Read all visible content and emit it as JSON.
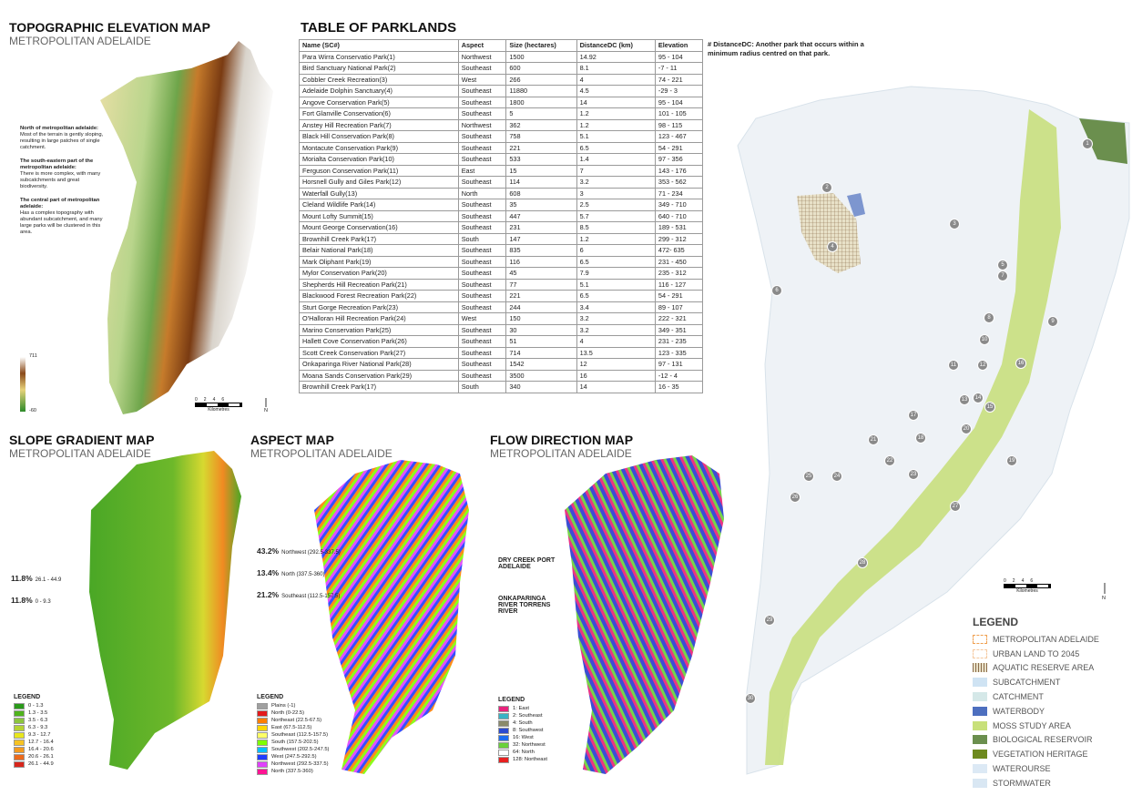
{
  "elevation_map": {
    "title": "TOPOGRAPHIC ELEVATION MAP",
    "subtitle": "METROPOLITAN ADELAIDE",
    "notes": [
      {
        "heading": "North of metropolitan adelaide:",
        "text": "Most of the terrain is gently sloping, resulting in large patches of single catchment."
      },
      {
        "heading": "The south-eastern part of the metropolitan adelaide:",
        "text": "There is more complex, with many subcatchments and great biodiversity."
      },
      {
        "heading": "The central part of metropolitan adelaide:",
        "text": "Has a complex topography with abundant subcatchment, and many large parks will be clustered in this area."
      }
    ],
    "scale_max": "711",
    "scale_min": "-60",
    "scale_ticks": [
      "0",
      "2",
      "4",
      "6"
    ],
    "scale_unit": "Kilometres",
    "north": "N"
  },
  "table": {
    "title": "TABLE OF PARKLANDS",
    "header": [
      "Name (SC#)",
      "Aspect",
      "Size (hectares)",
      "DistanceDC (km)",
      "Elevation"
    ],
    "rows": [
      [
        "Para Wirra Conservatio Park(1)",
        "Northwest",
        "1500",
        "14.92",
        "95 - 104"
      ],
      [
        "Bird Sanctuary National Park(2)",
        "Southeast",
        "600",
        "8.1",
        "-7 - 11"
      ],
      [
        "Cobbler Creek Recreation(3)",
        "West",
        "266",
        "4",
        "74 - 221"
      ],
      [
        "Adelaide Dolphin Sanctuary(4)",
        "Southeast",
        "11880",
        "4.5",
        "-29 - 3"
      ],
      [
        "Angove Conservation Park(5)",
        "Southeast",
        "1800",
        "14",
        "95 - 104"
      ],
      [
        "Fort Glanville Conservation(6)",
        "Southeast",
        "5",
        "1.2",
        "101 - 105"
      ],
      [
        "Anstey Hill Recreation Park(7)",
        "Northwest",
        "362",
        "1.2",
        "98 - 115"
      ],
      [
        "Black Hill Conservation Park(8)",
        "Southeast",
        "758",
        "5.1",
        "123 - 467"
      ],
      [
        "Montacute Conservation Park(9)",
        "Southeast",
        "221",
        "6.5",
        "54 - 291"
      ],
      [
        "Morialta Conservation Park(10)",
        "Southeast",
        "533",
        "1.4",
        "97 - 356"
      ],
      [
        "Ferguson Conservation Park(11)",
        "East",
        "15",
        "7",
        "143 - 176"
      ],
      [
        "Horsnell Gully and Giles Park(12)",
        "Southeast",
        "114",
        "3.2",
        "353 - 562"
      ],
      [
        "Waterfall Gully(13)",
        "North",
        "608",
        "3",
        "71 - 234"
      ],
      [
        "Cleland Wildlife Park(14)",
        "Southeast",
        "35",
        "2.5",
        "349 - 710"
      ],
      [
        "Mount Lofty Summit(15)",
        "Southeast",
        "447",
        "5.7",
        "640 - 710"
      ],
      [
        "Mount George Conservation(16)",
        "Southeast",
        "231",
        "8.5",
        "189 - 531"
      ],
      [
        "Brownhill Creek Park(17)",
        "South",
        "147",
        "1.2",
        "299 - 312"
      ],
      [
        "Belair National Park(18)",
        "Southeast",
        "835",
        "6",
        "472- 635"
      ],
      [
        "Mark Oliphant Park(19)",
        "Southeast",
        "116",
        "6.5",
        "231 - 450"
      ],
      [
        "Mylor Conservation Park(20)",
        "Southeast",
        "45",
        "7.9",
        "235 - 312"
      ],
      [
        "Shepherds Hill Recreation Park(21)",
        "Southeast",
        "77",
        "5.1",
        "116 - 127"
      ],
      [
        "Blackwood Forest Recreation Park(22)",
        "Southeast",
        "221",
        "6.5",
        "54 - 291"
      ],
      [
        "Sturt Gorge Recreation Park(23)",
        "Southeast",
        "244",
        "3.4",
        "89 - 107"
      ],
      [
        "O'Halloran Hill Recreation Park(24)",
        "West",
        "150",
        "3.2",
        "222 - 321"
      ],
      [
        "Marino Conservation Park(25)",
        "Southeast",
        "30",
        "3.2",
        "349 - 351"
      ],
      [
        "Hallett Cove Conservation Park(26)",
        "Southeast",
        "51",
        "4",
        "231 - 235"
      ],
      [
        "Scott Creek Conservation Park(27)",
        "Southeast",
        "714",
        "13.5",
        "123 - 335"
      ],
      [
        "Onkaparinga River National Park(28)",
        "Southeast",
        "1542",
        "12",
        "97 - 131"
      ],
      [
        "Moana Sands Conservation Park(29)",
        "Southeast",
        "3500",
        "16",
        "-12 - 4"
      ],
      [
        "Brownhill Creek Park(17)",
        "South",
        "340",
        "14",
        "16 - 35"
      ]
    ],
    "footnote": "# DistanceDC: Another park that occurs within a minimum radius centred on that park."
  },
  "slope_map": {
    "title": "SLOPE GRADIENT MAP",
    "subtitle": "METROPOLITAN ADELAIDE",
    "stats": [
      {
        "share": "11.8%",
        "range": "26.1 - 44.9"
      },
      {
        "share": "11.8%",
        "range": "0 - 9.3"
      }
    ],
    "legend_title": "LEGEND",
    "legend": [
      "0 - 1.3",
      "1.3 - 3.5",
      "3.5 - 6.3",
      "6.3 - 9.3",
      "9.3 - 12.7",
      "12.7 - 16.4",
      "16.4 - 20.6",
      "20.6 - 26.1",
      "26.1 - 44.9"
    ]
  },
  "aspect_map": {
    "title": "ASPECT MAP",
    "subtitle": "METROPOLITAN ADELAIDE",
    "stats": [
      {
        "share": "43.2%",
        "range": "Northwest (292.5-337.5)"
      },
      {
        "share": "13.4%",
        "range": "North (337.5-360)"
      },
      {
        "share": "21.2%",
        "range": "Southeast (112.5-157.5)"
      }
    ],
    "legend_title": "LEGEND",
    "legend": [
      "Plains (-1)",
      "North (0-22.5)",
      "Northeast (22.5-67.5)",
      "East (67.5-112.5)",
      "Southeast (112.5-157.5)",
      "South (157.5-202.5)",
      "Southwest (202.5-247.5)",
      "West (247.5-292.5)",
      "Northwest (292.5-337.5)",
      "North (337.5-360)"
    ]
  },
  "flow_map": {
    "title": "FLOW DIRECTION MAP",
    "subtitle": "METROPOLITAN ADELAIDE",
    "notes": [
      "DRY CREEK PORT ADELAIDE",
      "ONKAPARINGA RIVER TORRENS RIVER"
    ],
    "legend_title": "LEGEND",
    "legend": [
      "1: East",
      "2: Southeast",
      "4: South",
      "8: Southwest",
      "16: West",
      "32: Northwest",
      "64: North",
      "128: Northeast"
    ]
  },
  "main_map": {
    "markers": [
      "1",
      "2",
      "3",
      "4",
      "5",
      "6",
      "7",
      "8",
      "9",
      "10",
      "11",
      "12",
      "13",
      "14",
      "15",
      "16",
      "17",
      "18",
      "19",
      "20",
      "21",
      "22",
      "23",
      "24",
      "25",
      "26",
      "27",
      "28",
      "29",
      "30"
    ],
    "scale_ticks": [
      "0",
      "2",
      "4",
      "6"
    ],
    "scale_unit": "Kilometres",
    "north": "N",
    "legend_title": "LEGEND",
    "legend": [
      "METROPOLITAN ADELAIDE",
      "URBAN LAND TO 2045",
      "AQUATIC RESERVE AREA",
      "SUBCATCHMENT",
      "CATCHMENT",
      "WATERBODY",
      "MOSS STUDY AREA",
      "BIOLOGICAL RESERVOIR",
      "VEGETATION HERITAGE",
      "WATEROURSE",
      "STORMWATER"
    ]
  }
}
